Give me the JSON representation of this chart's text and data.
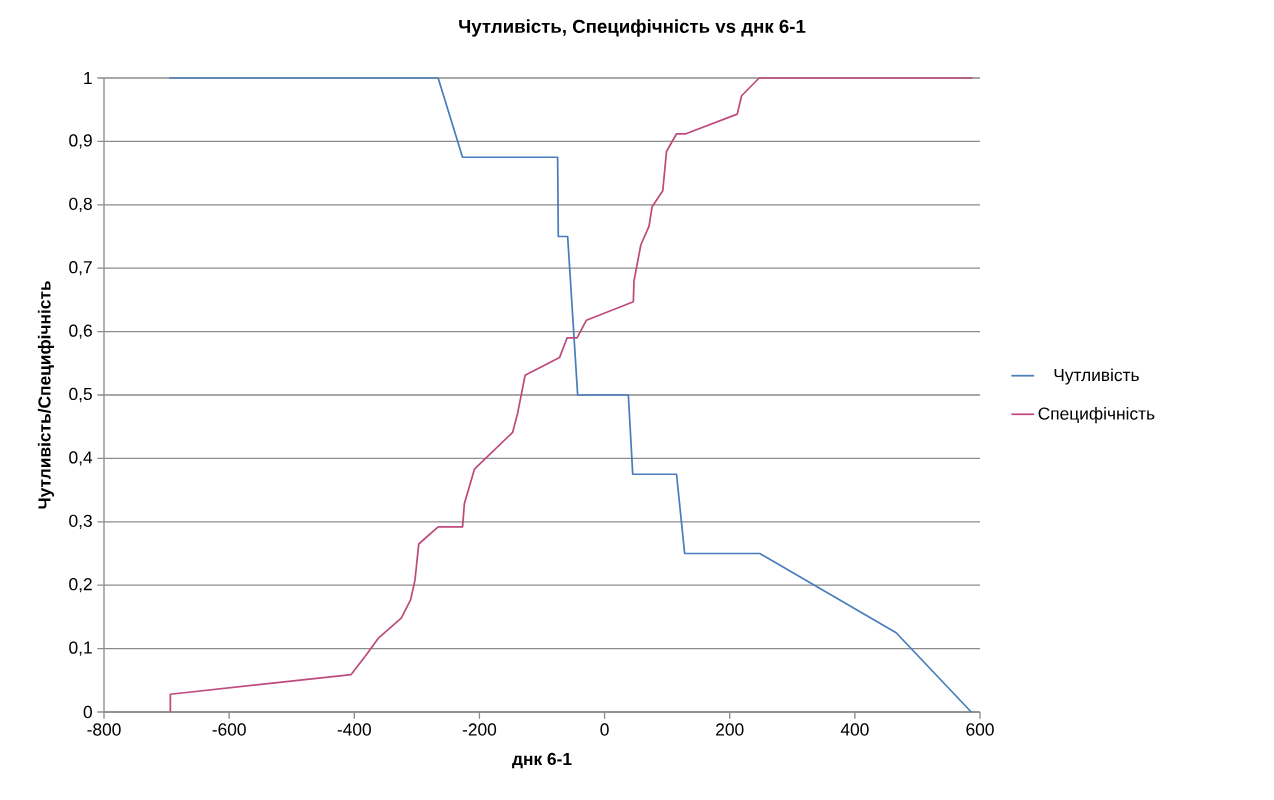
{
  "chart_data": {
    "type": "line",
    "title": "Чутливість, Специфічність vs днк 6-1",
    "xlabel": "днк 6-1",
    "ylabel": "Чутливість/Специфічність",
    "xlim": [
      -800,
      600
    ],
    "xticks": [
      -800,
      -600,
      -400,
      -200,
      0,
      200,
      400,
      600
    ],
    "ylim": [
      0,
      1
    ],
    "yticks": [
      0,
      {
        "value": 0.1,
        "label": "0,1"
      },
      {
        "value": 0.2,
        "label": "0,2"
      },
      {
        "value": 0.3,
        "label": "0,3"
      },
      {
        "value": 0.4,
        "label": "0,4"
      },
      {
        "value": 0.5,
        "label": "0,5"
      },
      {
        "value": 0.6,
        "label": "0,6"
      },
      {
        "value": 0.7,
        "label": "0,7"
      },
      {
        "value": 0.8,
        "label": "0,8"
      },
      {
        "value": 0.9,
        "label": "0,9"
      },
      1
    ],
    "grid": "y",
    "legend": "right",
    "marker": "none",
    "line_style": "solid",
    "series": [
      {
        "name": "Чутливість",
        "color": "#4a7ebb",
        "x": [
          -696,
          -266,
          -227,
          -75,
          -74,
          -59,
          -43,
          38,
          45,
          115,
          128,
          248,
          466,
          586
        ],
        "values": [
          1,
          1,
          0.875,
          0.875,
          0.75,
          0.75,
          0.5,
          0.5,
          0.375,
          0.375,
          0.25,
          0.25,
          0.125,
          0
        ]
      },
      {
        "name": "Специфічність",
        "color": "#be4b7e",
        "x": [
          -694,
          -694,
          -405,
          -381,
          -361,
          -325,
          -310,
          -303,
          -297,
          -266,
          -227,
          -224,
          -208,
          -147,
          -139,
          -127,
          -72,
          -60,
          -44,
          -29,
          46,
          47,
          58,
          71,
          76,
          93,
          99,
          115,
          130,
          212,
          219,
          247,
          588
        ],
        "values": [
          0,
          0.028,
          0.059,
          0.09,
          0.117,
          0.148,
          0.177,
          0.208,
          0.265,
          0.292,
          0.292,
          0.329,
          0.383,
          0.441,
          0.471,
          0.531,
          0.559,
          0.59,
          0.59,
          0.618,
          0.647,
          0.68,
          0.737,
          0.766,
          0.797,
          0.822,
          0.884,
          0.912,
          0.912,
          0.943,
          0.972,
          1,
          1
        ]
      }
    ]
  }
}
